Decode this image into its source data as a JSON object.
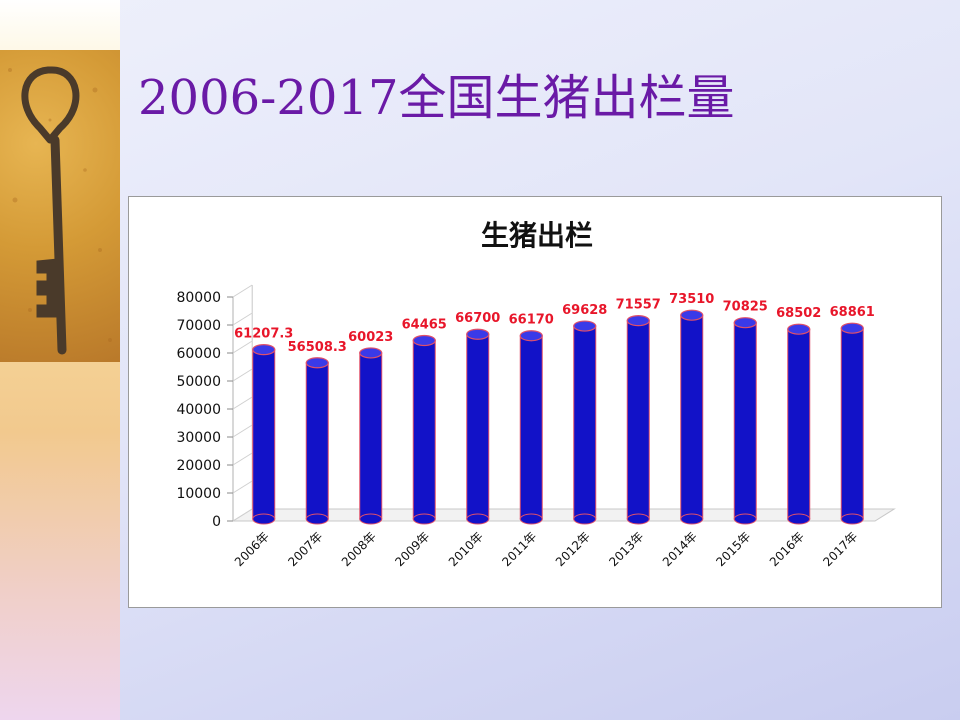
{
  "slide": {
    "title": "2006-2017全国生猪出栏量"
  },
  "colors": {
    "title": "#6a1aa6",
    "bar_fill": "#1212c8",
    "bar_edge": "#e0506a",
    "data_label": "#e8162a"
  },
  "chart_data": {
    "type": "bar",
    "title": "生猪出栏",
    "xlabel": "",
    "ylabel": "",
    "ylim": [
      0,
      80000
    ],
    "yticks": [
      0,
      10000,
      20000,
      30000,
      40000,
      50000,
      60000,
      70000,
      80000
    ],
    "grid": false,
    "categories": [
      "2006年",
      "2007年",
      "2008年",
      "2009年",
      "2010年",
      "2011年",
      "2012年",
      "2013年",
      "2014年",
      "2015年",
      "2016年",
      "2017年"
    ],
    "values": [
      61207.3,
      56508.3,
      60023,
      64465,
      66700,
      66170,
      69628,
      71557,
      73510,
      70825,
      68502,
      68861
    ],
    "data_labels": [
      "61207.3",
      "56508.3",
      "60023",
      "64465",
      "66700",
      "66170",
      "69628",
      "71557",
      "73510",
      "70825",
      "68502",
      "68861"
    ],
    "style": "3d-cylinder"
  }
}
